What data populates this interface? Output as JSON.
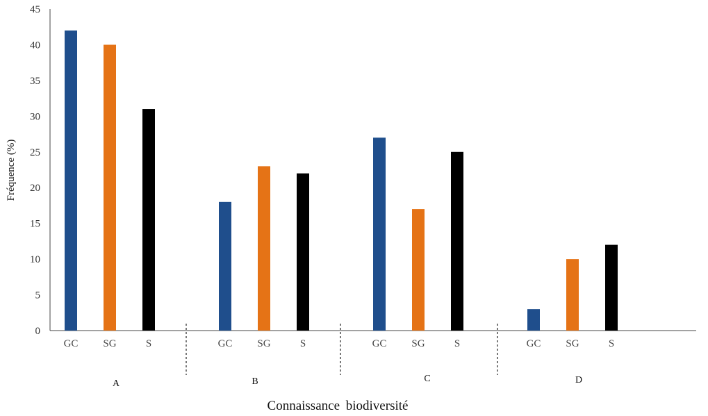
{
  "chart_data": {
    "type": "bar",
    "title": "",
    "xlabel": "Connaissance biodiversité",
    "ylabel": "Fréquence (%)",
    "ylim": [
      0,
      45
    ],
    "yticks": [
      0,
      5,
      10,
      15,
      20,
      25,
      30,
      35,
      40,
      45
    ],
    "grid": false,
    "legend": "none",
    "bar_categories": [
      "GC",
      "SG",
      "S"
    ],
    "colors": {
      "GC": "#1f4e8c",
      "SG": "#e57316",
      "S": "#000000"
    },
    "groups": [
      {
        "label": "A",
        "values": [
          42,
          40,
          31
        ]
      },
      {
        "label": "B",
        "values": [
          18,
          23,
          22
        ]
      },
      {
        "label": "C",
        "values": [
          27,
          17,
          25
        ]
      },
      {
        "label": "D",
        "values": [
          3,
          10,
          12
        ]
      }
    ]
  }
}
